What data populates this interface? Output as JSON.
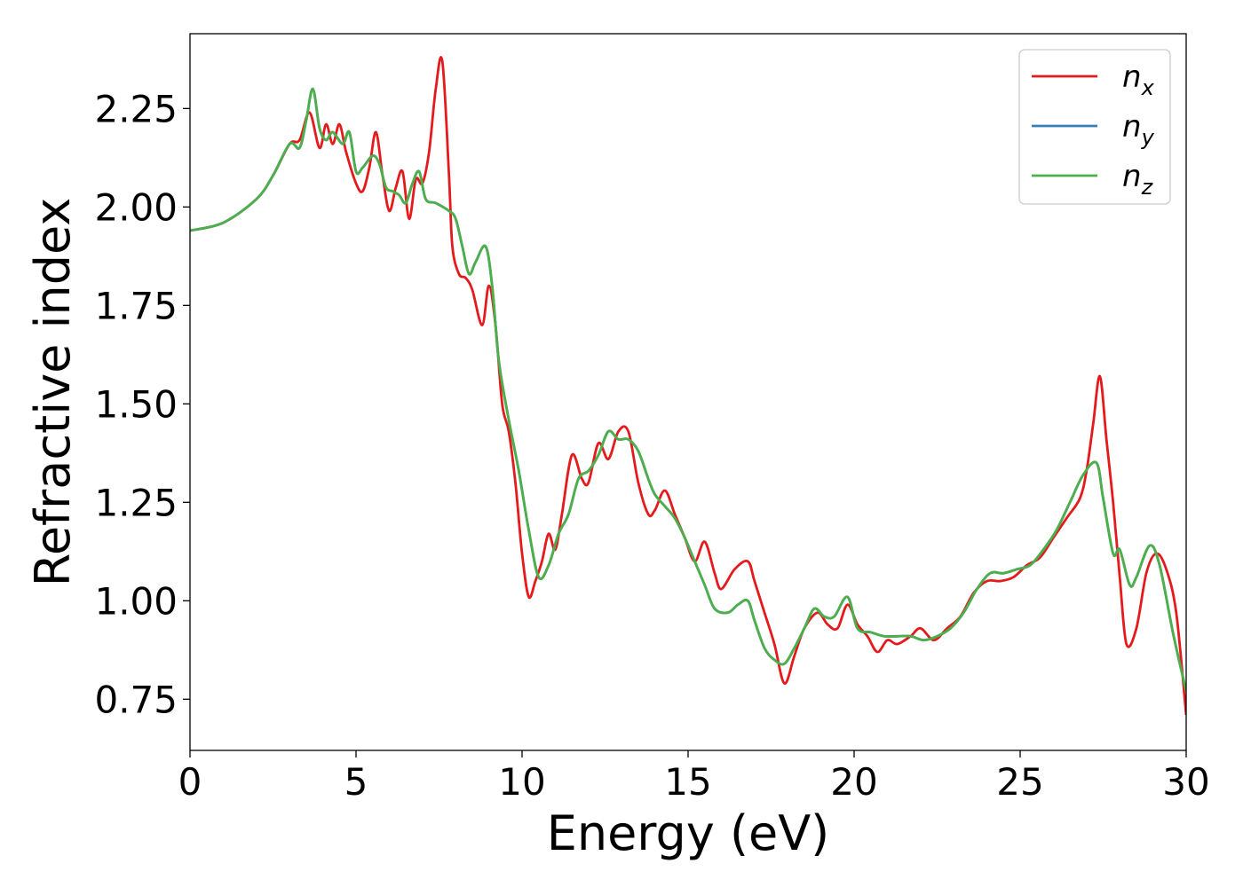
{
  "chart_data": {
    "type": "line",
    "xlabel": "Energy (eV)",
    "ylabel": "Refractive index",
    "xlim": [
      0,
      30
    ],
    "ylim": [
      0.62,
      2.44
    ],
    "xticks": [
      0,
      5,
      10,
      15,
      20,
      25,
      30
    ],
    "xtick_labels": [
      "0",
      "5",
      "10",
      "15",
      "20",
      "25",
      "30"
    ],
    "yticks": [
      0.75,
      1.0,
      1.25,
      1.5,
      1.75,
      2.0,
      2.25
    ],
    "ytick_labels": [
      "0.75",
      "1.00",
      "1.25",
      "1.50",
      "1.75",
      "2.00",
      "2.25"
    ],
    "grid": false,
    "legend_position": "top-right",
    "series": [
      {
        "name": "n_x",
        "legend_main": "n",
        "legend_sub": "x",
        "color": "#e41a1c",
        "x": [
          0,
          1,
          2,
          2.5,
          3,
          3.3,
          3.6,
          3.9,
          4.1,
          4.3,
          4.5,
          4.7,
          5,
          5.2,
          5.4,
          5.6,
          5.8,
          6,
          6.2,
          6.4,
          6.6,
          6.8,
          7,
          7.2,
          7.4,
          7.6,
          7.8,
          7.9,
          8.1,
          8.3,
          8.5,
          8.8,
          9.0,
          9.2,
          9.4,
          9.6,
          9.8,
          10,
          10.2,
          10.4,
          10.6,
          10.8,
          11,
          11.2,
          11.5,
          11.8,
          12,
          12.3,
          12.6,
          12.9,
          13.2,
          13.5,
          13.8,
          14.0,
          14.3,
          14.6,
          14.9,
          15.2,
          15.5,
          15.8,
          16.0,
          16.4,
          16.8,
          17.0,
          17.3,
          17.6,
          17.9,
          18.2,
          18.5,
          18.9,
          19.2,
          19.5,
          19.8,
          20.1,
          20.4,
          20.7,
          21.0,
          21.3,
          21.7,
          22.0,
          22.4,
          22.8,
          23.2,
          23.6,
          24.0,
          24.4,
          24.8,
          25.2,
          25.6,
          26.0,
          26.4,
          26.8,
          27.0,
          27.2,
          27.4,
          27.6,
          27.8,
          28.0,
          28.2,
          28.5,
          28.8,
          29.1,
          29.4,
          29.7,
          30
        ],
        "y": [
          1.94,
          1.96,
          2.02,
          2.08,
          2.16,
          2.17,
          2.24,
          2.15,
          2.21,
          2.16,
          2.21,
          2.14,
          2.06,
          2.04,
          2.1,
          2.19,
          2.08,
          1.99,
          2.05,
          2.09,
          1.97,
          2.07,
          2.06,
          2.14,
          2.3,
          2.37,
          2.08,
          1.9,
          1.83,
          1.82,
          1.79,
          1.7,
          1.8,
          1.7,
          1.5,
          1.43,
          1.3,
          1.12,
          1.01,
          1.05,
          1.1,
          1.17,
          1.13,
          1.22,
          1.37,
          1.31,
          1.3,
          1.4,
          1.36,
          1.43,
          1.43,
          1.3,
          1.22,
          1.23,
          1.28,
          1.22,
          1.16,
          1.1,
          1.15,
          1.07,
          1.03,
          1.08,
          1.1,
          1.05,
          0.97,
          0.89,
          0.79,
          0.86,
          0.93,
          0.97,
          0.94,
          0.93,
          0.99,
          0.94,
          0.91,
          0.87,
          0.9,
          0.89,
          0.91,
          0.93,
          0.9,
          0.93,
          0.96,
          1.02,
          1.05,
          1.05,
          1.06,
          1.09,
          1.11,
          1.16,
          1.21,
          1.26,
          1.33,
          1.45,
          1.57,
          1.41,
          1.25,
          1.06,
          0.89,
          0.93,
          1.07,
          1.12,
          1.08,
          0.97,
          0.71
        ]
      },
      {
        "name": "n_y",
        "legend_main": "n",
        "legend_sub": "y",
        "color": "#377eb8",
        "x": [
          0,
          1,
          2,
          2.5,
          3,
          3.3,
          3.5,
          3.7,
          3.9,
          4.1,
          4.3,
          4.6,
          4.8,
          5.0,
          5.2,
          5.5,
          5.7,
          5.9,
          6.1,
          6.3,
          6.5,
          6.7,
          6.9,
          7.1,
          7.4,
          7.8,
          8.0,
          8.2,
          8.4,
          8.6,
          8.9,
          9.1,
          9.3,
          9.6,
          9.9,
          10.2,
          10.5,
          10.8,
          11.1,
          11.4,
          11.7,
          12.0,
          12.3,
          12.6,
          12.9,
          13.2,
          13.5,
          13.8,
          14.0,
          14.3,
          14.6,
          14.9,
          15.2,
          15.5,
          15.8,
          16.2,
          16.5,
          16.8,
          17.0,
          17.3,
          17.6,
          17.9,
          18.2,
          18.5,
          18.8,
          19.1,
          19.4,
          19.8,
          20.1,
          20.5,
          20.9,
          21.3,
          21.7,
          22.1,
          22.5,
          22.9,
          23.3,
          23.7,
          24.1,
          24.5,
          24.9,
          25.3,
          25.7,
          26.1,
          26.5,
          26.9,
          27.3,
          27.5,
          27.8,
          28.0,
          28.3,
          28.5,
          28.9,
          29.2,
          29.6,
          30
        ],
        "y": [
          1.94,
          1.96,
          2.02,
          2.08,
          2.16,
          2.15,
          2.22,
          2.3,
          2.2,
          2.17,
          2.19,
          2.16,
          2.19,
          2.09,
          2.1,
          2.13,
          2.11,
          2.05,
          2.04,
          2.03,
          2.01,
          2.06,
          2.09,
          2.02,
          2.01,
          1.99,
          1.97,
          1.9,
          1.83,
          1.86,
          1.9,
          1.8,
          1.61,
          1.46,
          1.33,
          1.18,
          1.06,
          1.09,
          1.17,
          1.22,
          1.31,
          1.33,
          1.37,
          1.43,
          1.41,
          1.41,
          1.38,
          1.31,
          1.27,
          1.24,
          1.21,
          1.16,
          1.1,
          1.04,
          0.98,
          0.97,
          0.99,
          1.0,
          0.95,
          0.88,
          0.85,
          0.84,
          0.88,
          0.93,
          0.98,
          0.96,
          0.96,
          1.01,
          0.93,
          0.92,
          0.91,
          0.91,
          0.91,
          0.9,
          0.91,
          0.93,
          0.97,
          1.03,
          1.07,
          1.07,
          1.08,
          1.09,
          1.13,
          1.18,
          1.25,
          1.32,
          1.35,
          1.26,
          1.12,
          1.13,
          1.04,
          1.06,
          1.14,
          1.09,
          0.92,
          0.77
        ]
      },
      {
        "name": "n_z",
        "legend_main": "n",
        "legend_sub": "z",
        "color": "#4daf4a",
        "x": [
          0,
          1,
          2,
          2.5,
          3,
          3.3,
          3.5,
          3.7,
          3.9,
          4.1,
          4.3,
          4.6,
          4.8,
          5.0,
          5.2,
          5.5,
          5.7,
          5.9,
          6.1,
          6.3,
          6.5,
          6.7,
          6.9,
          7.1,
          7.4,
          7.8,
          8.0,
          8.2,
          8.4,
          8.6,
          8.9,
          9.1,
          9.3,
          9.6,
          9.9,
          10.2,
          10.5,
          10.8,
          11.1,
          11.4,
          11.7,
          12.0,
          12.3,
          12.6,
          12.9,
          13.2,
          13.5,
          13.8,
          14.0,
          14.3,
          14.6,
          14.9,
          15.2,
          15.5,
          15.8,
          16.2,
          16.5,
          16.8,
          17.0,
          17.3,
          17.6,
          17.9,
          18.2,
          18.5,
          18.8,
          19.1,
          19.4,
          19.8,
          20.1,
          20.5,
          20.9,
          21.3,
          21.7,
          22.1,
          22.5,
          22.9,
          23.3,
          23.7,
          24.1,
          24.5,
          24.9,
          25.3,
          25.7,
          26.1,
          26.5,
          26.9,
          27.3,
          27.5,
          27.8,
          28.0,
          28.3,
          28.5,
          28.9,
          29.2,
          29.6,
          30
        ],
        "y": [
          1.94,
          1.96,
          2.02,
          2.08,
          2.16,
          2.15,
          2.22,
          2.3,
          2.2,
          2.17,
          2.19,
          2.16,
          2.19,
          2.09,
          2.1,
          2.13,
          2.11,
          2.05,
          2.04,
          2.03,
          2.01,
          2.06,
          2.09,
          2.02,
          2.01,
          1.99,
          1.97,
          1.9,
          1.83,
          1.86,
          1.9,
          1.8,
          1.61,
          1.46,
          1.33,
          1.18,
          1.06,
          1.09,
          1.17,
          1.22,
          1.31,
          1.33,
          1.37,
          1.43,
          1.41,
          1.41,
          1.38,
          1.31,
          1.27,
          1.24,
          1.21,
          1.16,
          1.1,
          1.04,
          0.98,
          0.97,
          0.99,
          1.0,
          0.95,
          0.88,
          0.85,
          0.84,
          0.88,
          0.93,
          0.98,
          0.96,
          0.96,
          1.01,
          0.93,
          0.92,
          0.91,
          0.91,
          0.91,
          0.9,
          0.91,
          0.93,
          0.97,
          1.03,
          1.07,
          1.07,
          1.08,
          1.09,
          1.13,
          1.18,
          1.25,
          1.32,
          1.35,
          1.26,
          1.12,
          1.13,
          1.04,
          1.06,
          1.14,
          1.09,
          0.92,
          0.77
        ]
      }
    ]
  }
}
